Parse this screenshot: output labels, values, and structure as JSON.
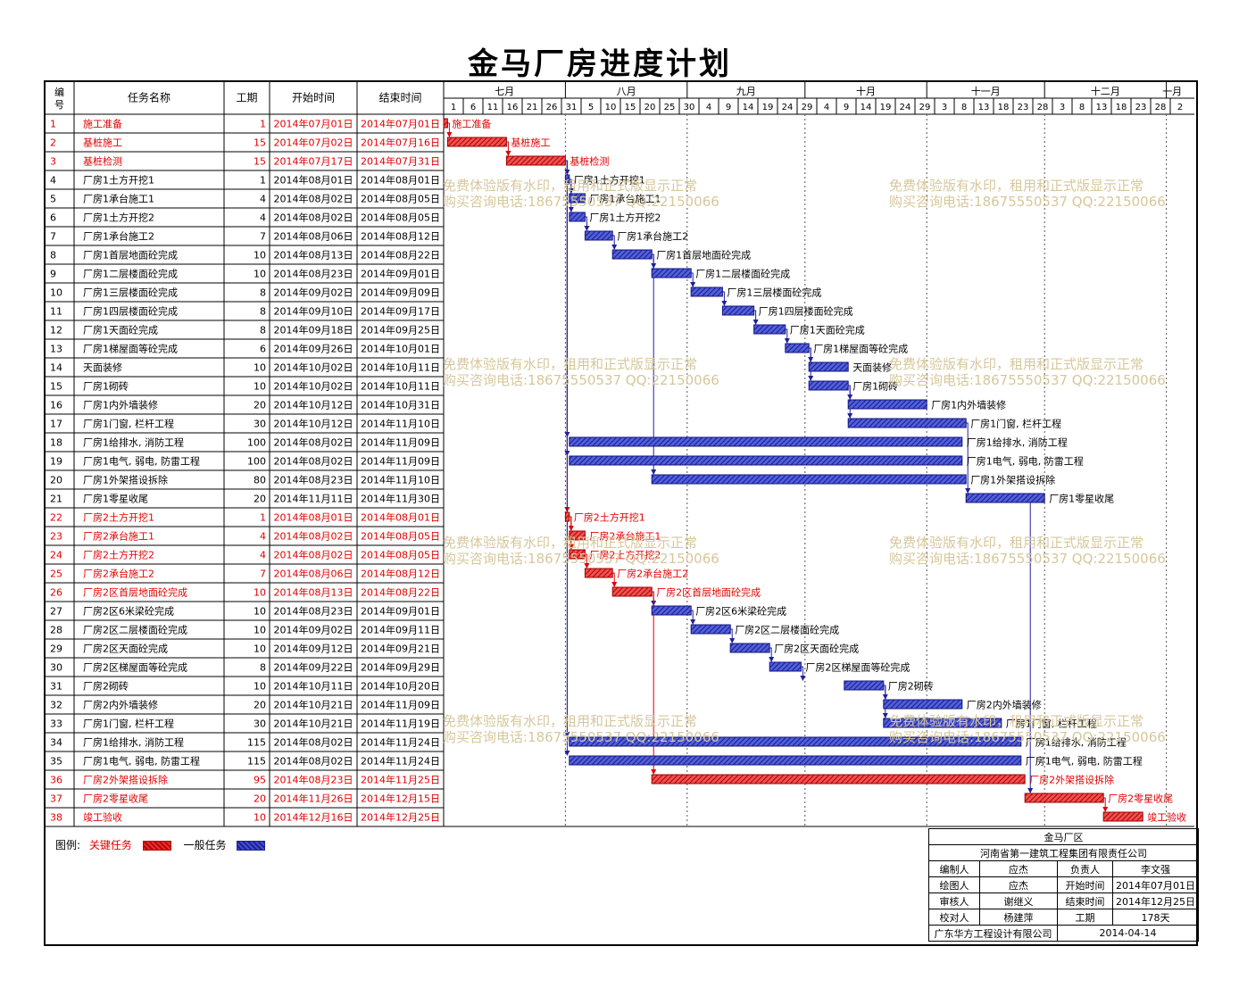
{
  "title": "金马厂房进度计划",
  "headers": {
    "no": "编号",
    "name": "任务名称",
    "dur": "工期",
    "start": "开始时间",
    "end": "结束时间"
  },
  "months": [
    "七月",
    "八月",
    "九月",
    "十月",
    "十一月",
    "十二月",
    "一月"
  ],
  "day_ticks": [
    "1",
    "6",
    "11",
    "16",
    "21",
    "26",
    "31",
    "5",
    "10",
    "15",
    "20",
    "25",
    "30",
    "4",
    "9",
    "14",
    "19",
    "24",
    "29",
    "4",
    "9",
    "14",
    "19",
    "24",
    "29",
    "3",
    "8",
    "13",
    "18",
    "23",
    "28",
    "3",
    "8",
    "13",
    "18",
    "23",
    "28",
    "2"
  ],
  "tasks": [
    {
      "no": "1",
      "name": "施工准备",
      "dur": "1",
      "start": "2014年07月01日",
      "end": "2014年07月01日",
      "critical": true
    },
    {
      "no": "2",
      "name": "基桩施工",
      "dur": "15",
      "start": "2014年07月02日",
      "end": "2014年07月16日",
      "critical": true
    },
    {
      "no": "3",
      "name": "基桩检测",
      "dur": "15",
      "start": "2014年07月17日",
      "end": "2014年07月31日",
      "critical": true
    },
    {
      "no": "4",
      "name": "厂房1土方开挖1",
      "dur": "1",
      "start": "2014年08月01日",
      "end": "2014年08月01日",
      "critical": false
    },
    {
      "no": "5",
      "name": "厂房1承台施工1",
      "dur": "4",
      "start": "2014年08月02日",
      "end": "2014年08月05日",
      "critical": false
    },
    {
      "no": "6",
      "name": "厂房1土方开挖2",
      "dur": "4",
      "start": "2014年08月02日",
      "end": "2014年08月05日",
      "critical": false
    },
    {
      "no": "7",
      "name": "厂房1承台施工2",
      "dur": "7",
      "start": "2014年08月06日",
      "end": "2014年08月12日",
      "critical": false
    },
    {
      "no": "8",
      "name": "厂房1首层地面砼完成",
      "dur": "10",
      "start": "2014年08月13日",
      "end": "2014年08月22日",
      "critical": false
    },
    {
      "no": "9",
      "name": "厂房1二层楼面砼完成",
      "dur": "10",
      "start": "2014年08月23日",
      "end": "2014年09月01日",
      "critical": false
    },
    {
      "no": "10",
      "name": "厂房1三层楼面砼完成",
      "dur": "8",
      "start": "2014年09月02日",
      "end": "2014年09月09日",
      "critical": false
    },
    {
      "no": "11",
      "name": "厂房1四层楼面砼完成",
      "dur": "8",
      "start": "2014年09月10日",
      "end": "2014年09月17日",
      "critical": false
    },
    {
      "no": "12",
      "name": "厂房1天面砼完成",
      "dur": "8",
      "start": "2014年09月18日",
      "end": "2014年09月25日",
      "critical": false
    },
    {
      "no": "13",
      "name": "厂房1梯屋面等砼完成",
      "dur": "6",
      "start": "2014年09月26日",
      "end": "2014年10月01日",
      "critical": false
    },
    {
      "no": "14",
      "name": "天面装修",
      "dur": "10",
      "start": "2014年10月02日",
      "end": "2014年10月11日",
      "critical": false
    },
    {
      "no": "15",
      "name": "厂房1砌砖",
      "dur": "10",
      "start": "2014年10月02日",
      "end": "2014年10月11日",
      "critical": false
    },
    {
      "no": "16",
      "name": "厂房1内外墙装修",
      "dur": "20",
      "start": "2014年10月12日",
      "end": "2014年10月31日",
      "critical": false
    },
    {
      "no": "17",
      "name": "厂房1门窗, 栏杆工程",
      "dur": "30",
      "start": "2014年10月12日",
      "end": "2014年11月10日",
      "critical": false
    },
    {
      "no": "18",
      "name": "厂房1给排水, 消防工程",
      "dur": "100",
      "start": "2014年08月02日",
      "end": "2014年11月09日",
      "critical": false
    },
    {
      "no": "19",
      "name": "厂房1电气, 弱电, 防雷工程",
      "dur": "100",
      "start": "2014年08月02日",
      "end": "2014年11月09日",
      "critical": false
    },
    {
      "no": "20",
      "name": "厂房1外架搭设拆除",
      "dur": "80",
      "start": "2014年08月23日",
      "end": "2014年11月10日",
      "critical": false
    },
    {
      "no": "21",
      "name": "厂房1零星收尾",
      "dur": "20",
      "start": "2014年11月11日",
      "end": "2014年11月30日",
      "critical": false
    },
    {
      "no": "22",
      "name": "厂房2土方开挖1",
      "dur": "1",
      "start": "2014年08月01日",
      "end": "2014年08月01日",
      "critical": true
    },
    {
      "no": "23",
      "name": "厂房2承台施工1",
      "dur": "4",
      "start": "2014年08月02日",
      "end": "2014年08月05日",
      "critical": true
    },
    {
      "no": "24",
      "name": "厂房2土方开挖2",
      "dur": "4",
      "start": "2014年08月02日",
      "end": "2014年08月05日",
      "critical": true
    },
    {
      "no": "25",
      "name": "厂房2承台施工2",
      "dur": "7",
      "start": "2014年08月06日",
      "end": "2014年08月12日",
      "critical": true
    },
    {
      "no": "26",
      "name": "厂房2区首层地面砼完成",
      "dur": "10",
      "start": "2014年08月13日",
      "end": "2014年08月22日",
      "critical": true
    },
    {
      "no": "27",
      "name": "厂房2区6米梁砼完成",
      "dur": "10",
      "start": "2014年08月23日",
      "end": "2014年09月01日",
      "critical": false
    },
    {
      "no": "28",
      "name": "厂房2区二层楼面砼完成",
      "dur": "10",
      "start": "2014年09月02日",
      "end": "2014年09月11日",
      "critical": false
    },
    {
      "no": "29",
      "name": "厂房2区天面砼完成",
      "dur": "10",
      "start": "2014年09月12日",
      "end": "2014年09月21日",
      "critical": false
    },
    {
      "no": "30",
      "name": "厂房2区梯屋面等砼完成",
      "dur": "8",
      "start": "2014年09月22日",
      "end": "2014年09月29日",
      "critical": false
    },
    {
      "no": "31",
      "name": "厂房2砌砖",
      "dur": "10",
      "start": "2014年10月11日",
      "end": "2014年10月20日",
      "critical": false
    },
    {
      "no": "32",
      "name": "厂房2内外墙装修",
      "dur": "20",
      "start": "2014年10月21日",
      "end": "2014年11月09日",
      "critical": false
    },
    {
      "no": "33",
      "name": "厂房1门窗, 栏杆工程",
      "dur": "30",
      "start": "2014年10月21日",
      "end": "2014年11月19日",
      "critical": false
    },
    {
      "no": "34",
      "name": "厂房1给排水, 消防工程",
      "dur": "115",
      "start": "2014年08月02日",
      "end": "2014年11月24日",
      "critical": false
    },
    {
      "no": "35",
      "name": "厂房1电气, 弱电, 防雷工程",
      "dur": "115",
      "start": "2014年08月02日",
      "end": "2014年11月24日",
      "critical": false
    },
    {
      "no": "36",
      "name": "厂房2外架搭设拆除",
      "dur": "95",
      "start": "2014年08月23日",
      "end": "2014年11月25日",
      "critical": true
    },
    {
      "no": "37",
      "name": "厂房2零星收尾",
      "dur": "20",
      "start": "2014年11月26日",
      "end": "2014年12月15日",
      "critical": true
    },
    {
      "no": "38",
      "name": "竣工验收",
      "dur": "10",
      "start": "2014年12月16日",
      "end": "2014年12月25日",
      "critical": true
    }
  ],
  "legend": {
    "label": "图例:",
    "critical": "关键任务",
    "normal": "一般任务"
  },
  "title_block": {
    "project": "金马厂区",
    "company": "河南省第一建筑工程集团有限责任公司",
    "compiler_label": "编制人",
    "compiler": "应杰",
    "owner_label": "负责人",
    "owner": "李文强",
    "drawer_label": "绘图人",
    "drawer": "应杰",
    "start_label": "开始时间",
    "start": "2014年07月01日",
    "reviewer_label": "审核人",
    "reviewer": "谢继义",
    "end_label": "结束时间",
    "end": "2014年12月25日",
    "checker_label": "校对人",
    "checker": "杨建萍",
    "duration_label": "工期",
    "duration": "178天",
    "designer": "广东华方工程设计有限公司",
    "date": "2014-04-14"
  },
  "watermark": {
    "line1": "免费体验版有水印，租用和正式版显示正常",
    "line2": "购买咨询电话:18675550537 QQ:22150066"
  },
  "colors": {
    "critical": "#e00000",
    "normal": "#2020a0",
    "grid": "#000000"
  }
}
